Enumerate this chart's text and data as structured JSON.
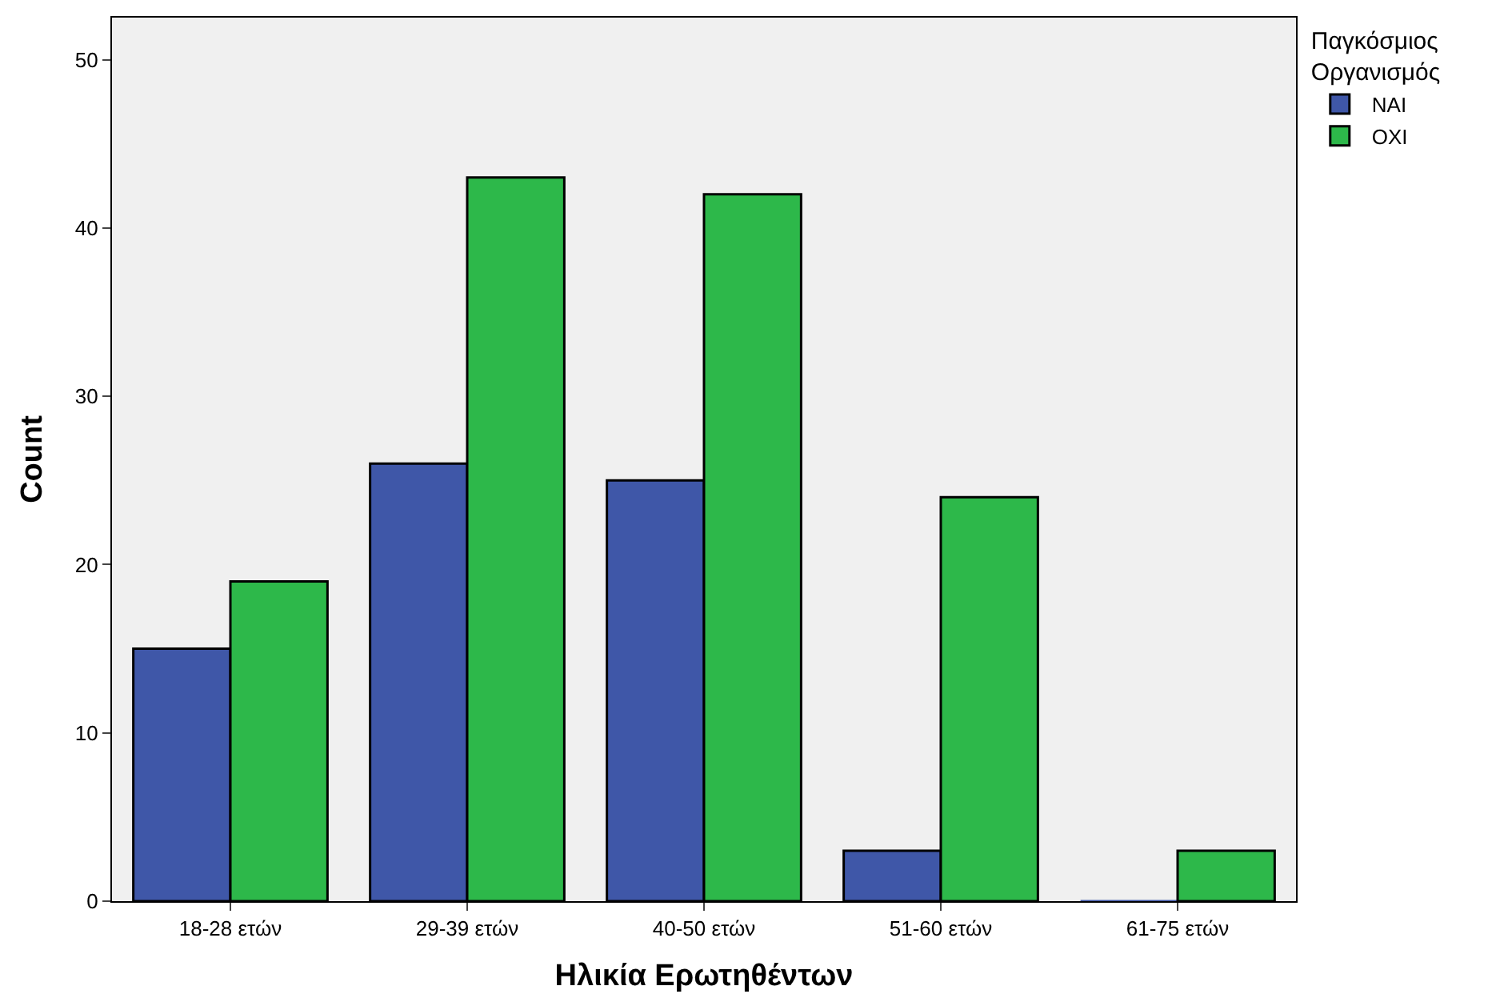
{
  "chart_data": {
    "type": "bar",
    "xlabel": "Ηλικία Ερωτηθέντων",
    "ylabel": "Count",
    "legend_title": "Παγκόσμιος\nΟργανισμός",
    "categories": [
      "18-28 ετών",
      "29-39 ετών",
      "40-50 ετών",
      "51-60 ετών",
      "61-75 ετών"
    ],
    "series": [
      {
        "name": "ΝΑΙ",
        "color": "#3f57a8",
        "values": [
          15,
          26,
          25,
          3,
          0
        ]
      },
      {
        "name": "ΟΧΙ",
        "color": "#2db84a",
        "values": [
          19,
          43,
          42,
          24,
          3
        ]
      }
    ],
    "ylim": [
      0,
      52.5
    ],
    "yticks": [
      0,
      10,
      20,
      30,
      40,
      50
    ],
    "grid": false,
    "legend": "top right"
  }
}
